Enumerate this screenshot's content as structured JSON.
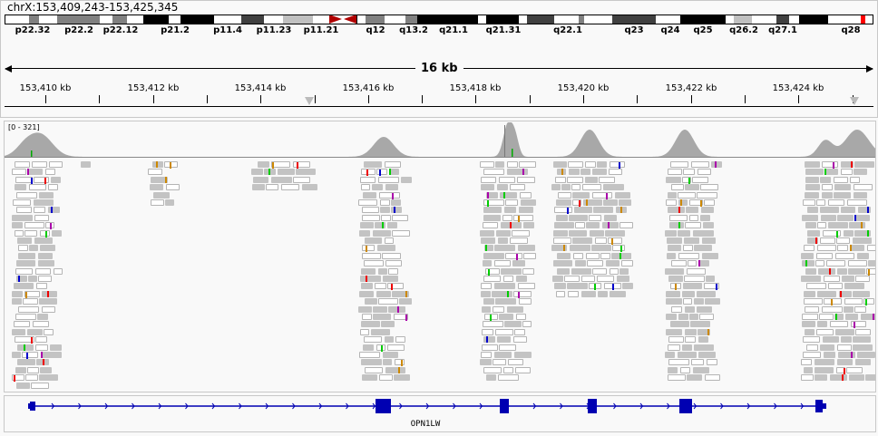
{
  "locus": "chrX:153,409,243-153,425,345",
  "ideogram": {
    "bands": [
      {
        "label": "p22.32"
      },
      {
        "label": "p22.2"
      },
      {
        "label": "p22.12"
      },
      {
        "label": "p21.2"
      },
      {
        "label": "p11.4"
      },
      {
        "label": "p11.23"
      },
      {
        "label": "p11.21"
      },
      {
        "label": "q12"
      },
      {
        "label": "q13.2"
      },
      {
        "label": "q21.1"
      },
      {
        "label": "q21.31"
      },
      {
        "label": "q22.1"
      },
      {
        "label": "q23"
      },
      {
        "label": "q24"
      },
      {
        "label": "q25"
      },
      {
        "label": "q26.2"
      },
      {
        "label": "q27.1"
      },
      {
        "label": "q28"
      }
    ],
    "centromere_color": "#b00000",
    "marker_color": "#ff0000"
  },
  "ruler": {
    "span": "16 kb",
    "ticks": [
      "153,410 kb",
      "153,412 kb",
      "153,414 kb",
      "153,416 kb",
      "153,418 kb",
      "153,420 kb",
      "153,422 kb",
      "153,424 kb"
    ]
  },
  "coverage": {
    "range_label": "[0 - 321]",
    "color": "#a8a8a8"
  },
  "gene": {
    "name": "OPN1LW",
    "color": "#0000b2"
  }
}
